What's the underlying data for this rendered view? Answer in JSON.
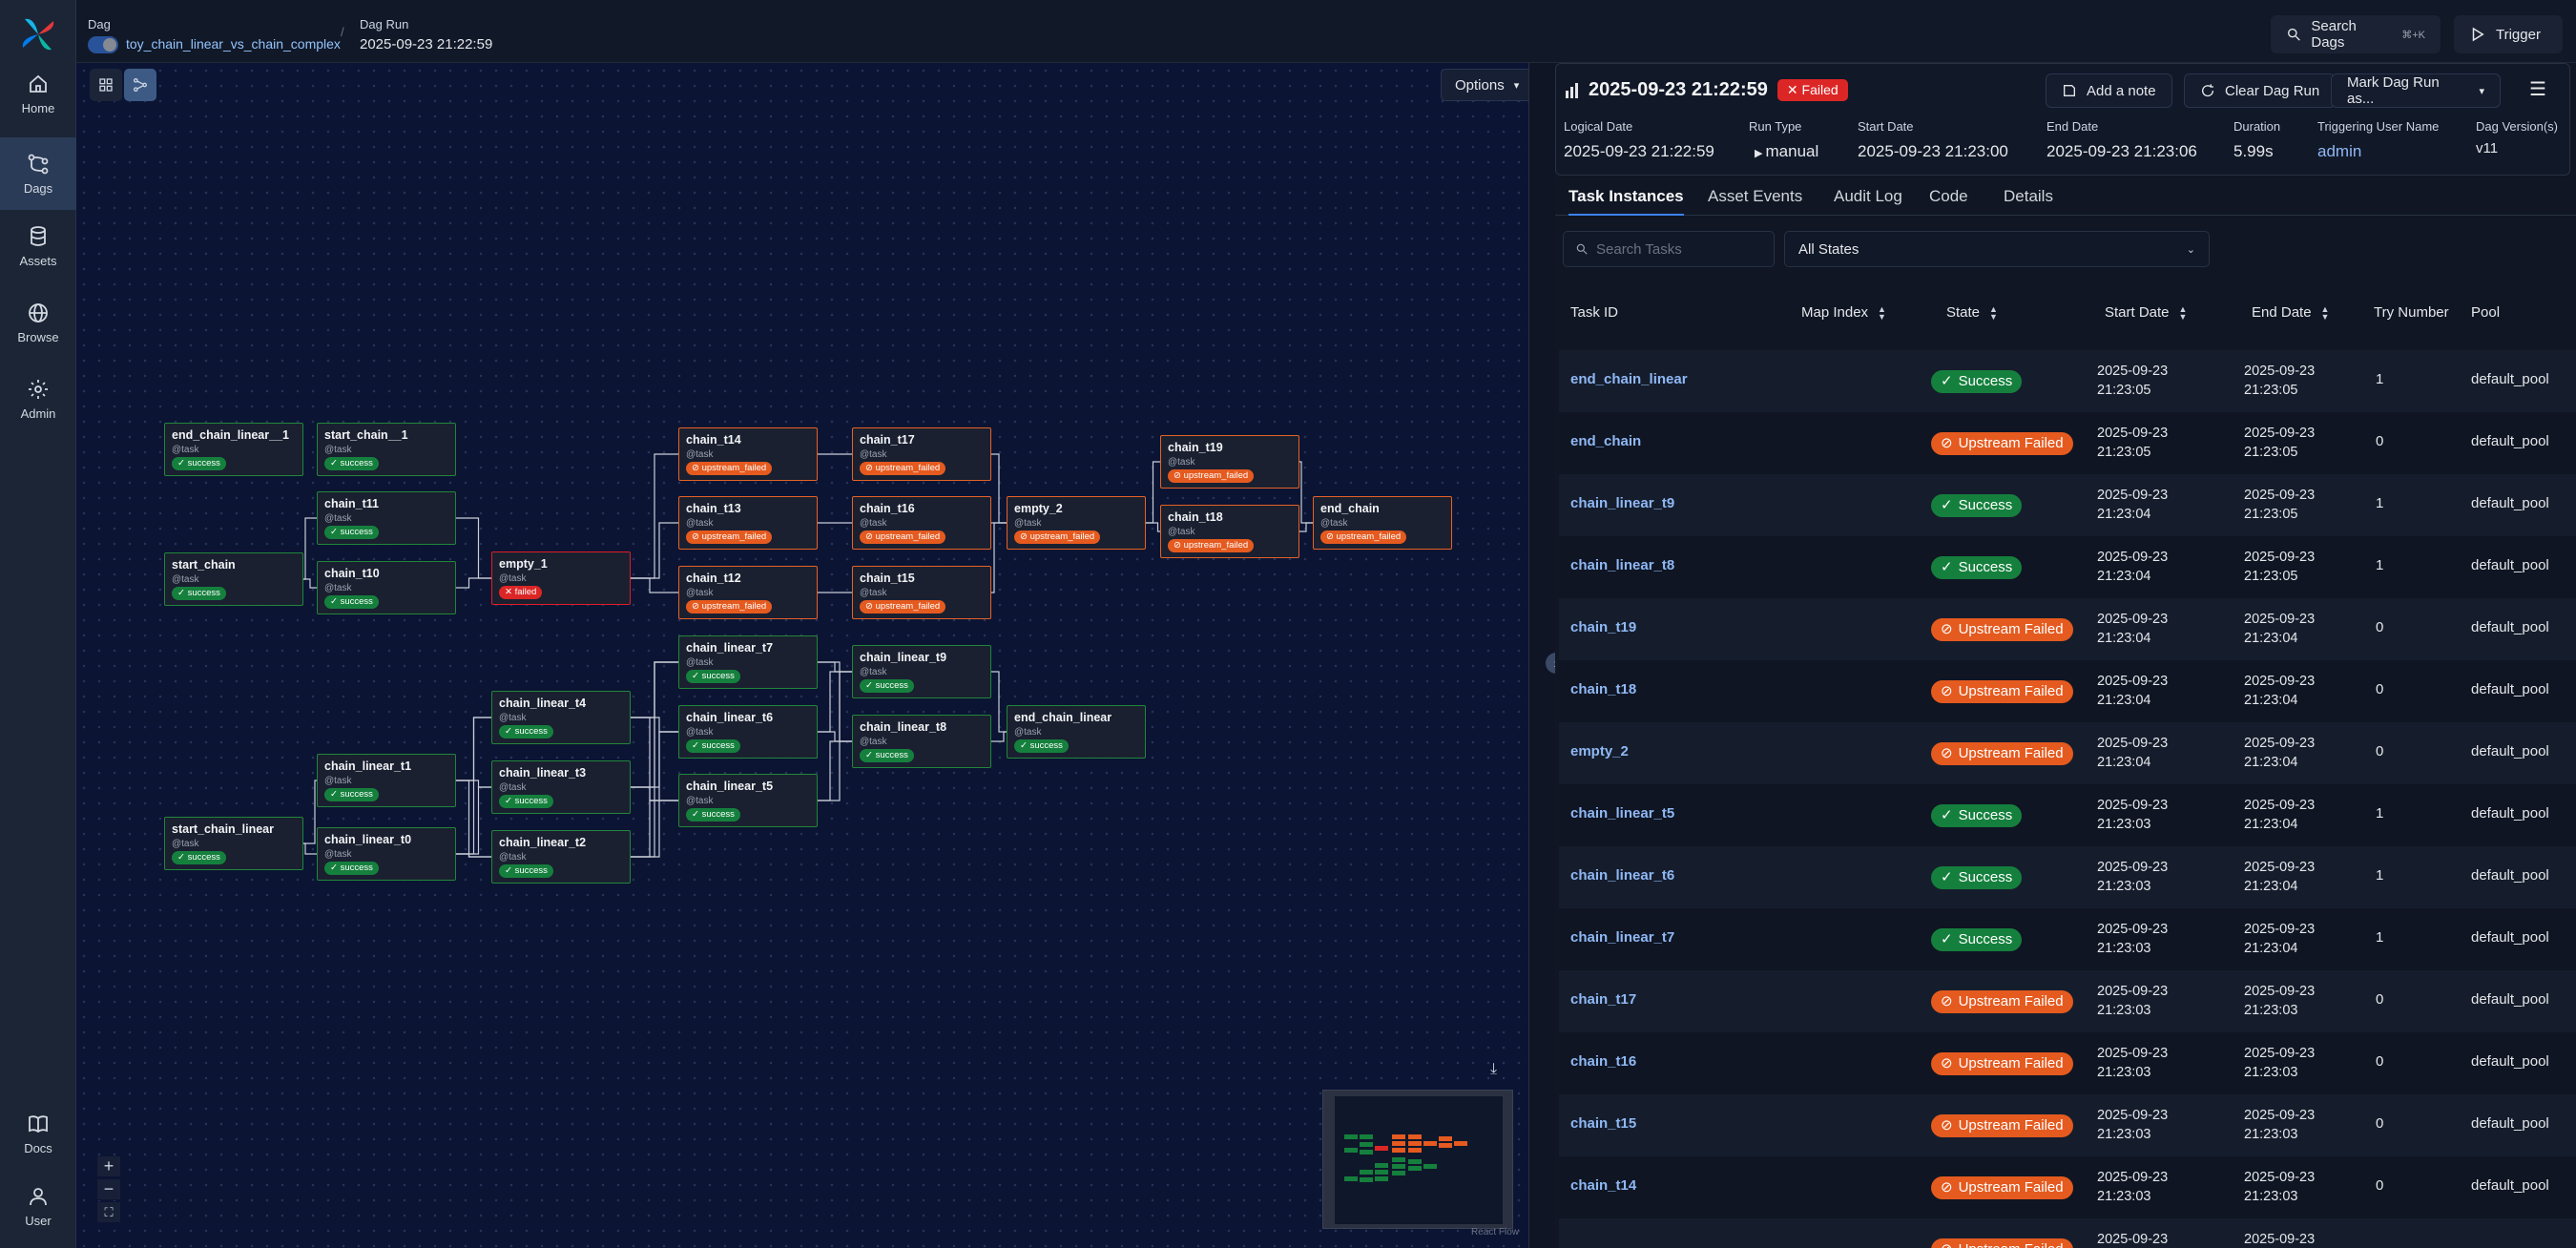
{
  "nav": {
    "items": [
      {
        "label": "Home",
        "icon": "home-icon"
      },
      {
        "label": "Dags",
        "icon": "dags-icon",
        "active": true
      },
      {
        "label": "Assets",
        "icon": "database-icon"
      },
      {
        "label": "Browse",
        "icon": "globe-icon"
      },
      {
        "label": "Admin",
        "icon": "gear-icon"
      }
    ],
    "bottom": [
      {
        "label": "Docs",
        "icon": "book-icon"
      },
      {
        "label": "User",
        "icon": "user-icon"
      }
    ]
  },
  "header": {
    "dag_label": "Dag",
    "dag_name": "toy_chain_linear_vs_chain_complex",
    "dagrun_label": "Dag Run",
    "dagrun_value": "2025-09-23 21:22:59",
    "search_label": "Search Dags",
    "search_shortcut": "⌘+K",
    "trigger_label": "Trigger"
  },
  "graph": {
    "options_label": "Options",
    "attribution": "React Flow",
    "type_label": "@task",
    "nodes": [
      {
        "id": "end_chain_linear__1",
        "state": "success"
      },
      {
        "id": "start_chain__1",
        "state": "success"
      },
      {
        "id": "start_chain",
        "state": "success"
      },
      {
        "id": "chain_t11",
        "state": "success"
      },
      {
        "id": "chain_t10",
        "state": "success"
      },
      {
        "id": "empty_1",
        "state": "failed"
      },
      {
        "id": "chain_t14",
        "state": "upstream_failed"
      },
      {
        "id": "chain_t13",
        "state": "upstream_failed"
      },
      {
        "id": "chain_t12",
        "state": "upstream_failed"
      },
      {
        "id": "chain_t17",
        "state": "upstream_failed"
      },
      {
        "id": "chain_t16",
        "state": "upstream_failed"
      },
      {
        "id": "chain_t15",
        "state": "upstream_failed"
      },
      {
        "id": "empty_2",
        "state": "upstream_failed"
      },
      {
        "id": "chain_t19",
        "state": "upstream_failed"
      },
      {
        "id": "chain_t18",
        "state": "upstream_failed"
      },
      {
        "id": "end_chain",
        "state": "upstream_failed"
      },
      {
        "id": "start_chain_linear",
        "state": "success"
      },
      {
        "id": "chain_linear_t1",
        "state": "success"
      },
      {
        "id": "chain_linear_t0",
        "state": "success"
      },
      {
        "id": "chain_linear_t4",
        "state": "success"
      },
      {
        "id": "chain_linear_t3",
        "state": "success"
      },
      {
        "id": "chain_linear_t2",
        "state": "success"
      },
      {
        "id": "chain_linear_t7",
        "state": "success"
      },
      {
        "id": "chain_linear_t6",
        "state": "success"
      },
      {
        "id": "chain_linear_t5",
        "state": "success"
      },
      {
        "id": "chain_linear_t9",
        "state": "success"
      },
      {
        "id": "chain_linear_t8",
        "state": "success"
      },
      {
        "id": "end_chain_linear",
        "state": "success"
      }
    ],
    "state_labels": {
      "success": "✓ success",
      "upstream_failed": "⊘ upstream_failed",
      "failed": "✕ failed"
    }
  },
  "run": {
    "title": "2025-09-23 21:22:59",
    "status": "Failed",
    "add_note": "Add a note",
    "clear_run": "Clear Dag Run",
    "mark_run": "Mark Dag Run as...",
    "meta": [
      {
        "label": "Logical Date",
        "value": "2025-09-23 21:22:59"
      },
      {
        "label": "Run Type",
        "value": "manual"
      },
      {
        "label": "Start Date",
        "value": "2025-09-23 21:23:00"
      },
      {
        "label": "End Date",
        "value": "2025-09-23 21:23:06"
      },
      {
        "label": "Duration",
        "value": "5.99s"
      },
      {
        "label": "Triggering User Name",
        "value": "admin"
      },
      {
        "label": "Dag Version(s)",
        "value": "v11"
      }
    ]
  },
  "tabs": [
    "Task Instances",
    "Asset Events",
    "Audit Log",
    "Code",
    "Details"
  ],
  "filters": {
    "search_placeholder": "Search Tasks",
    "state_filter": "All States"
  },
  "table": {
    "headers": [
      "Task ID",
      "Map Index",
      "State",
      "Start Date",
      "End Date",
      "Try Number",
      "Pool"
    ],
    "rows": [
      {
        "task_id": "end_chain_linear",
        "state": "Success",
        "start1": "2025-09-23",
        "start2": "21:23:05",
        "end1": "2025-09-23",
        "end2": "21:23:05",
        "try": "1",
        "pool": "default_pool"
      },
      {
        "task_id": "end_chain",
        "state": "Upstream Failed",
        "start1": "2025-09-23",
        "start2": "21:23:05",
        "end1": "2025-09-23",
        "end2": "21:23:05",
        "try": "0",
        "pool": "default_pool"
      },
      {
        "task_id": "chain_linear_t9",
        "state": "Success",
        "start1": "2025-09-23",
        "start2": "21:23:04",
        "end1": "2025-09-23",
        "end2": "21:23:05",
        "try": "1",
        "pool": "default_pool"
      },
      {
        "task_id": "chain_linear_t8",
        "state": "Success",
        "start1": "2025-09-23",
        "start2": "21:23:04",
        "end1": "2025-09-23",
        "end2": "21:23:05",
        "try": "1",
        "pool": "default_pool"
      },
      {
        "task_id": "chain_t19",
        "state": "Upstream Failed",
        "start1": "2025-09-23",
        "start2": "21:23:04",
        "end1": "2025-09-23",
        "end2": "21:23:04",
        "try": "0",
        "pool": "default_pool"
      },
      {
        "task_id": "chain_t18",
        "state": "Upstream Failed",
        "start1": "2025-09-23",
        "start2": "21:23:04",
        "end1": "2025-09-23",
        "end2": "21:23:04",
        "try": "0",
        "pool": "default_pool"
      },
      {
        "task_id": "empty_2",
        "state": "Upstream Failed",
        "start1": "2025-09-23",
        "start2": "21:23:04",
        "end1": "2025-09-23",
        "end2": "21:23:04",
        "try": "0",
        "pool": "default_pool"
      },
      {
        "task_id": "chain_linear_t5",
        "state": "Success",
        "start1": "2025-09-23",
        "start2": "21:23:03",
        "end1": "2025-09-23",
        "end2": "21:23:04",
        "try": "1",
        "pool": "default_pool"
      },
      {
        "task_id": "chain_linear_t6",
        "state": "Success",
        "start1": "2025-09-23",
        "start2": "21:23:03",
        "end1": "2025-09-23",
        "end2": "21:23:04",
        "try": "1",
        "pool": "default_pool"
      },
      {
        "task_id": "chain_linear_t7",
        "state": "Success",
        "start1": "2025-09-23",
        "start2": "21:23:03",
        "end1": "2025-09-23",
        "end2": "21:23:04",
        "try": "1",
        "pool": "default_pool"
      },
      {
        "task_id": "chain_t17",
        "state": "Upstream Failed",
        "start1": "2025-09-23",
        "start2": "21:23:03",
        "end1": "2025-09-23",
        "end2": "21:23:03",
        "try": "0",
        "pool": "default_pool"
      },
      {
        "task_id": "chain_t16",
        "state": "Upstream Failed",
        "start1": "2025-09-23",
        "start2": "21:23:03",
        "end1": "2025-09-23",
        "end2": "21:23:03",
        "try": "0",
        "pool": "default_pool"
      },
      {
        "task_id": "chain_t15",
        "state": "Upstream Failed",
        "start1": "2025-09-23",
        "start2": "21:23:03",
        "end1": "2025-09-23",
        "end2": "21:23:03",
        "try": "0",
        "pool": "default_pool"
      },
      {
        "task_id": "chain_t14",
        "state": "Upstream Failed",
        "start1": "2025-09-23",
        "start2": "21:23:03",
        "end1": "2025-09-23",
        "end2": "21:23:03",
        "try": "0",
        "pool": "default_pool"
      },
      {
        "task_id": "",
        "state": "Upstream Failed",
        "start1": "2025-09-23",
        "start2": "",
        "end1": "2025-09-23",
        "end2": "",
        "try": "",
        "pool": ""
      }
    ]
  },
  "colors": {
    "success": "#15803d",
    "upstream_failed": "#e55a1f",
    "failed": "#dc2626",
    "accent": "#3b82f6"
  }
}
